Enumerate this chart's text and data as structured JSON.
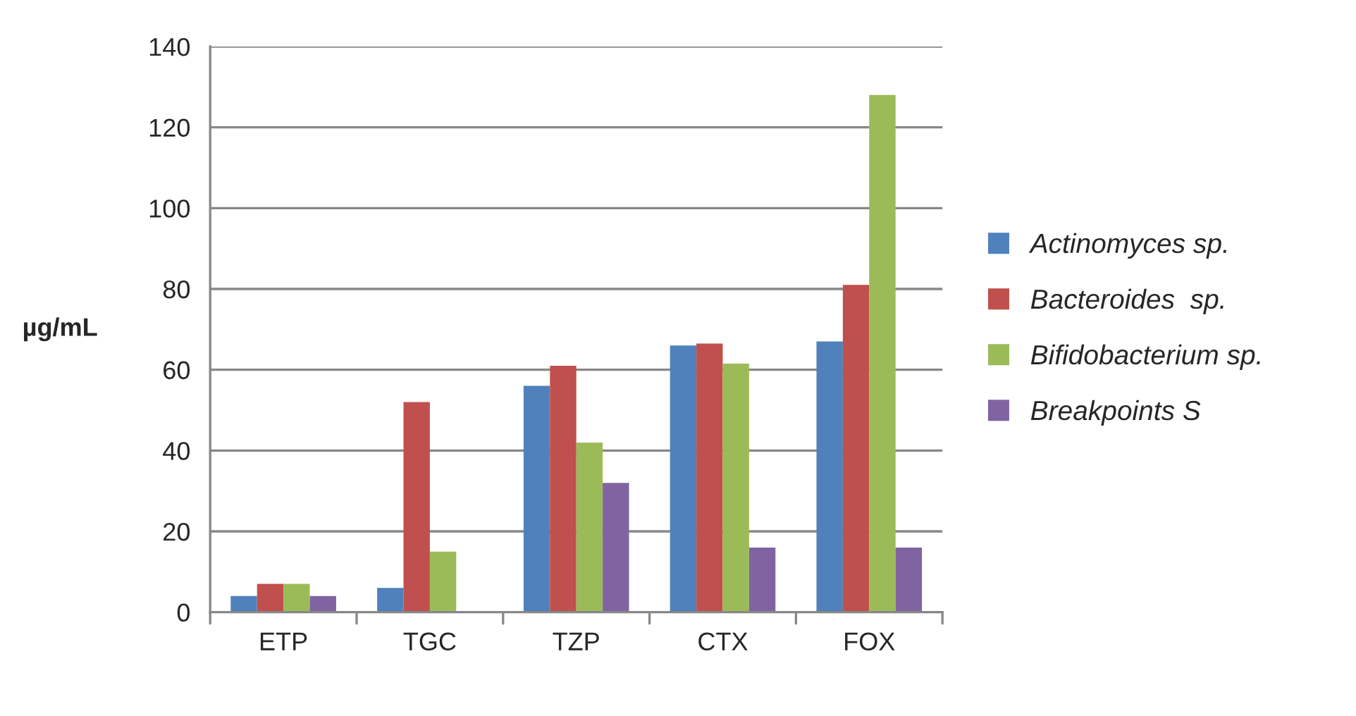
{
  "chart_data": {
    "type": "bar",
    "ylabel": "µg/mL",
    "categories": [
      "ETP",
      "TGC",
      "TZP",
      "CTX",
      "FOX"
    ],
    "series": [
      {
        "name": "Actinomyces sp.",
        "color": "#4f81bd",
        "values": [
          4,
          6,
          56,
          66,
          67
        ]
      },
      {
        "name": "Bacteroides  sp.",
        "color": "#c0504d",
        "values": [
          7,
          52,
          61,
          66.5,
          81
        ]
      },
      {
        "name": "Bifidobacterium sp.",
        "color": "#9bbb59",
        "values": [
          7,
          15,
          42,
          61.5,
          128
        ]
      },
      {
        "name": "Breakpoints S",
        "color": "#8064a2",
        "values": [
          4,
          null,
          32,
          16,
          16
        ]
      }
    ],
    "ylim": [
      0,
      140
    ],
    "yticks": [
      0,
      20,
      40,
      60,
      80,
      100,
      120,
      140
    ],
    "grid": "y",
    "legend": "right"
  }
}
